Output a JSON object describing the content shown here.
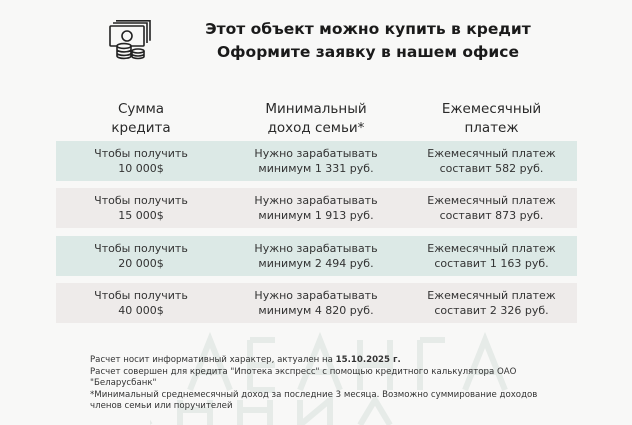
{
  "header": {
    "icon": "money-coins-icon",
    "title_line1": "Этот объект можно купить в кредит",
    "title_line2": "Оформите заявку в нашем офисе"
  },
  "columns": [
    {
      "line1": "Сумма",
      "line2": "кредита"
    },
    {
      "line1": "Минимальный",
      "line2": "доход семьи*"
    },
    {
      "line1": "Ежемесячный",
      "line2": "платеж"
    }
  ],
  "row_colors": [
    "#dce9e6",
    "#eeebea"
  ],
  "rows": [
    {
      "amount_label": "Чтобы получить",
      "amount": "10 000$",
      "income_label": "Нужно зарабатывать",
      "income": "минимум 1 331 руб.",
      "payment_label": "Ежемесячный платеж",
      "payment": "составит 582 руб."
    },
    {
      "amount_label": "Чтобы получить",
      "amount": "15 000$",
      "income_label": "Нужно зарабатывать",
      "income": "минимум 1 913 руб.",
      "payment_label": "Ежемесячный платеж",
      "payment": "составит 873 руб."
    },
    {
      "amount_label": "Чтобы получить",
      "amount": "20 000$",
      "income_label": "Нужно зарабатывать",
      "income": "минимум 2 494 руб.",
      "payment_label": "Ежемесячный платеж",
      "payment": "составит 1 163 руб."
    },
    {
      "amount_label": "Чтобы получить",
      "amount": "40 000$",
      "income_label": "Нужно зарабатывать",
      "income": "минимум 4 820 руб.",
      "payment_label": "Ежемесячный платеж",
      "payment": "составит 2 326 руб."
    }
  ],
  "notes": {
    "line1_prefix": "Расчет носит информативный характер, актуален на ",
    "line1_date": "15.10.2025 г.",
    "line2": "Расчет совершен для кредита \"Ипотека экспресс\" с помощью кредитного калькулятора ОАО \"Беларусбанк\"",
    "line3": "*Минимальный среднемесячный доход за последние 3 месяца. Возможно суммирование доходов членов семьи или поручителей"
  },
  "watermark": "АВАНГАРД НЕДВИЖИМОСТЬ"
}
